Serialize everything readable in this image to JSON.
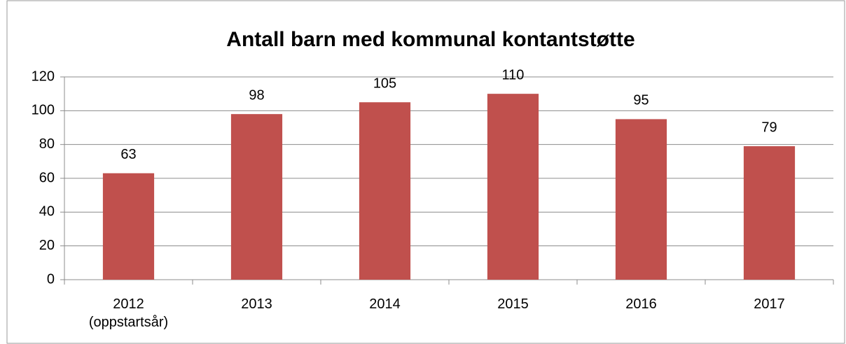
{
  "chart_data": {
    "type": "bar",
    "title": "Antall barn med kommunal kontantstøtte",
    "categories": [
      "2012\n(oppstartsår)",
      "2013",
      "2014",
      "2015",
      "2016",
      "2017"
    ],
    "values": [
      63,
      98,
      105,
      110,
      95,
      79
    ],
    "color": "#c0504d",
    "ylim": [
      0,
      120
    ],
    "yticks": [
      0,
      20,
      40,
      60,
      80,
      100,
      120
    ],
    "grid": true
  }
}
